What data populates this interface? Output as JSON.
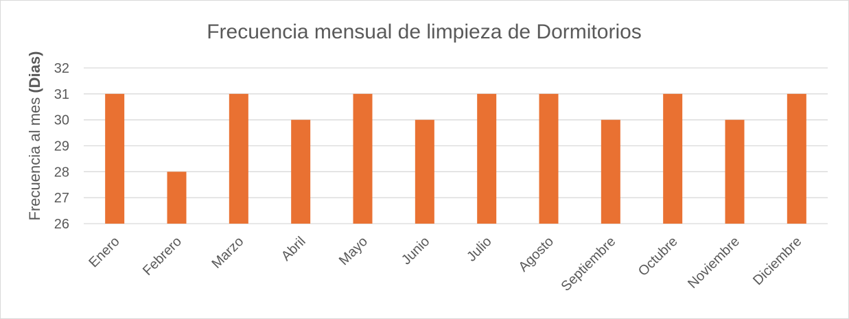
{
  "chart_data": {
    "type": "bar",
    "title": "Frecuencia  mensual de limpieza de Dormitorios",
    "ylabel": {
      "prefix": "Frecuencia al mes ",
      "bold": "(Dias)"
    },
    "xlabel": "",
    "categories": [
      "Enero",
      "Febrero",
      "Marzo",
      "Abril",
      "Mayo",
      "Junio",
      "Julio",
      "Agosto",
      "Septiembre",
      "Octubre",
      "Noviembre",
      "Diciembre"
    ],
    "values": [
      31,
      28,
      31,
      30,
      31,
      30,
      31,
      31,
      30,
      31,
      30,
      31
    ],
    "ylim": [
      26,
      32
    ],
    "yticks": [
      "26",
      "27",
      "28",
      "29",
      "30",
      "31",
      "32"
    ],
    "grid": true,
    "legend": "none",
    "bar_color": "#E97132",
    "grid_color": "#D9D9D9",
    "text_color": "#595959"
  }
}
